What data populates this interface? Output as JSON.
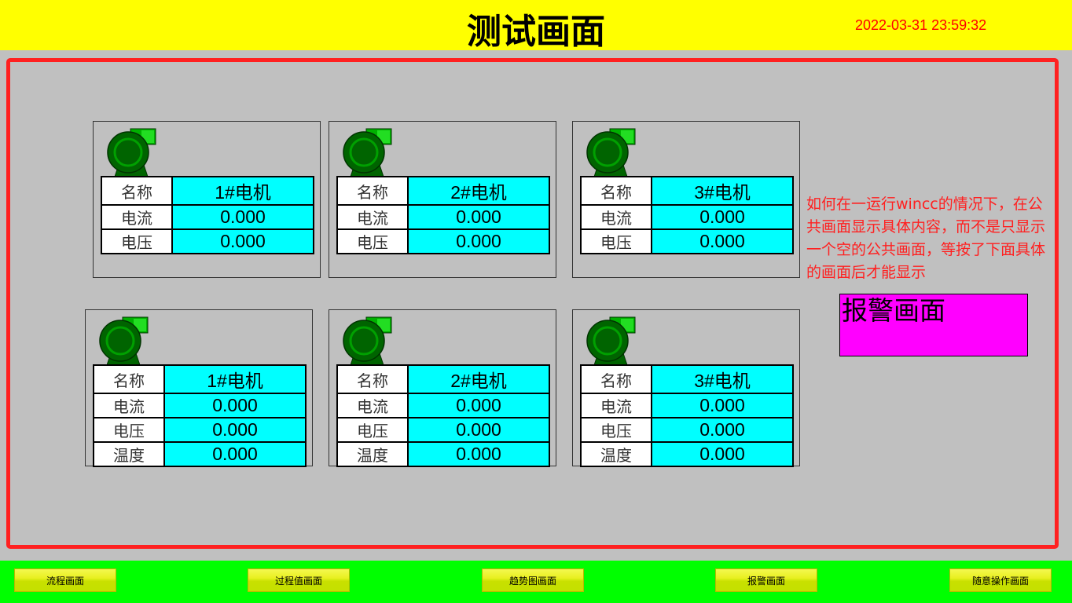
{
  "header": {
    "title": "测试画面",
    "datetime": "2022-03-31 23:59:32"
  },
  "colors": {
    "header_bg": "#ffff00",
    "frame": "#ff2020",
    "value_cell": "#00ffff",
    "alarm_bg": "#ff00ff",
    "footer_bg": "#00ff00",
    "fan": "#008000"
  },
  "motors_top": [
    {
      "icon": "fan-icon",
      "rows": [
        [
          "名称",
          "1#电机"
        ],
        [
          "电流",
          "0.000"
        ],
        [
          "电压",
          "0.000"
        ]
      ]
    },
    {
      "icon": "fan-icon",
      "rows": [
        [
          "名称",
          "2#电机"
        ],
        [
          "电流",
          "0.000"
        ],
        [
          "电压",
          "0.000"
        ]
      ]
    },
    {
      "icon": "fan-icon",
      "rows": [
        [
          "名称",
          "3#电机"
        ],
        [
          "电流",
          "0.000"
        ],
        [
          "电压",
          "0.000"
        ]
      ]
    }
  ],
  "motors_bottom": [
    {
      "icon": "fan-icon",
      "rows": [
        [
          "名称",
          "1#电机"
        ],
        [
          "电流",
          "0.000"
        ],
        [
          "电压",
          "0.000"
        ],
        [
          "温度",
          "0.000"
        ]
      ]
    },
    {
      "icon": "fan-icon",
      "rows": [
        [
          "名称",
          "2#电机"
        ],
        [
          "电流",
          "0.000"
        ],
        [
          "电压",
          "0.000"
        ],
        [
          "温度",
          "0.000"
        ]
      ]
    },
    {
      "icon": "fan-icon",
      "rows": [
        [
          "名称",
          "3#电机"
        ],
        [
          "电流",
          "0.000"
        ],
        [
          "电压",
          "0.000"
        ],
        [
          "温度",
          "0.000"
        ]
      ]
    }
  ],
  "note": "如何在一运行wincc的情况下，在公共画面显示具体内容，而不是只显示一个空的公共画面，等按了下面具体的画面后才能显示",
  "alarm_box": "报警画面",
  "footer": {
    "buttons": [
      "流程画面",
      "过程值画面",
      "趋势图画面",
      "报警画面",
      "随意操作画面"
    ]
  }
}
